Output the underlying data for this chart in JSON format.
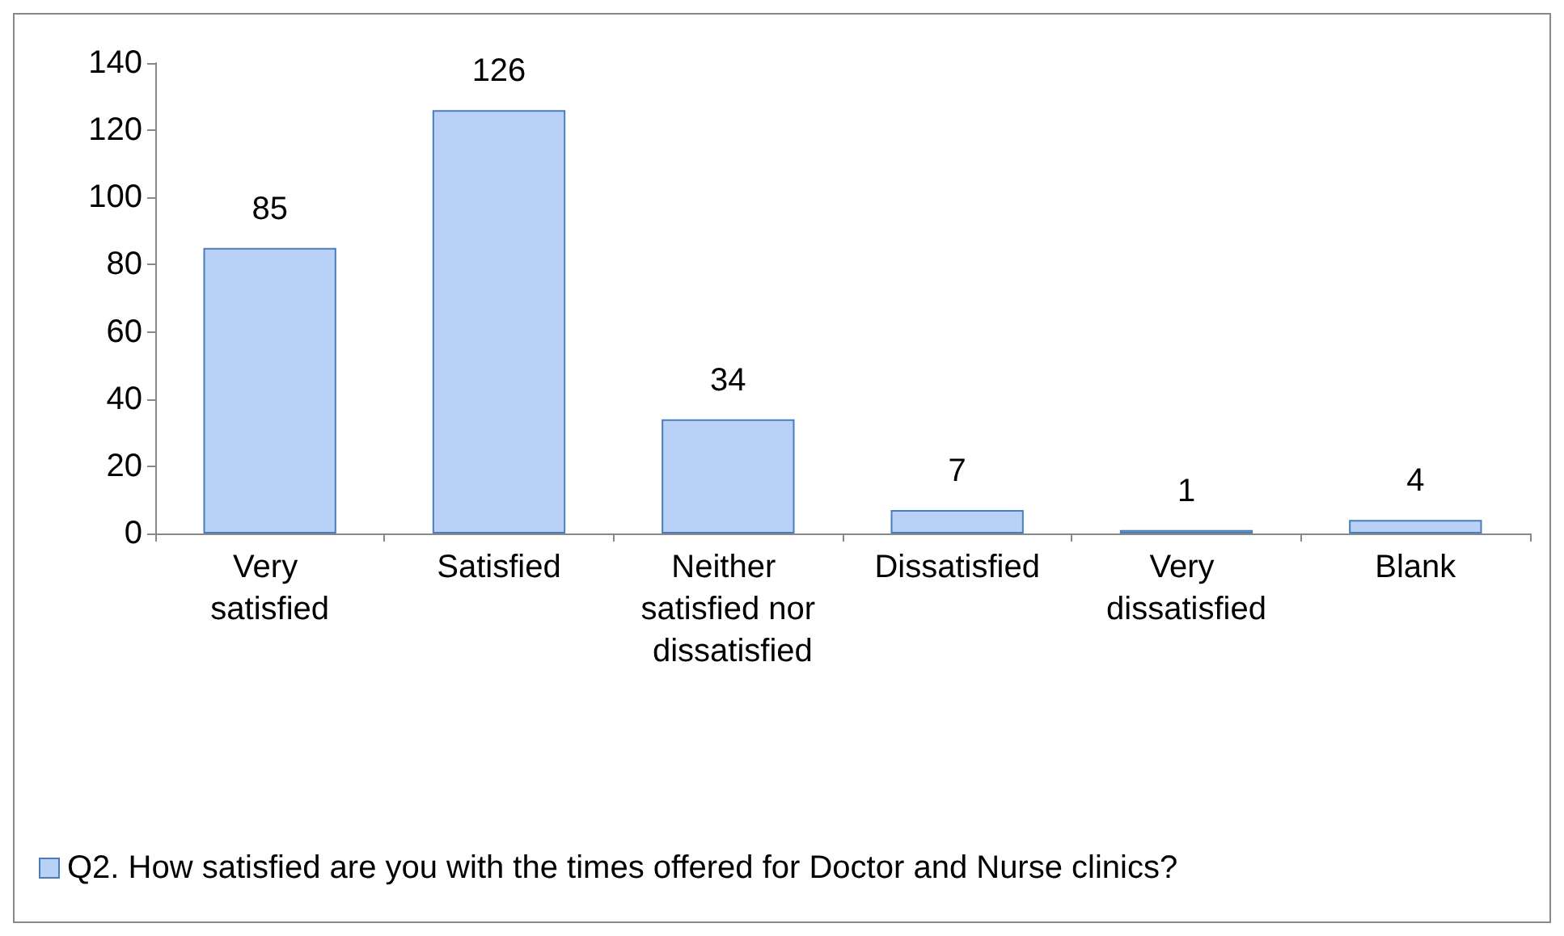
{
  "chart_data": {
    "type": "bar",
    "categories": [
      "Very satisfied",
      "Satisfied",
      "Neither satisfied nor dissatisfied",
      "Dissatisfied",
      "Very dissatisfied",
      "Blank"
    ],
    "series": [
      {
        "name": "Q2. How satisfied are you with the times offered for Doctor and Nurse clinics?",
        "color": "#b9d0f7",
        "values": [
          85,
          126,
          34,
          7,
          1,
          4
        ]
      }
    ],
    "ylim": [
      0,
      140
    ],
    "yticks": [
      0,
      20,
      40,
      60,
      80,
      100,
      120,
      140
    ],
    "grid": false,
    "legend": "bottom",
    "data_labels": true
  }
}
